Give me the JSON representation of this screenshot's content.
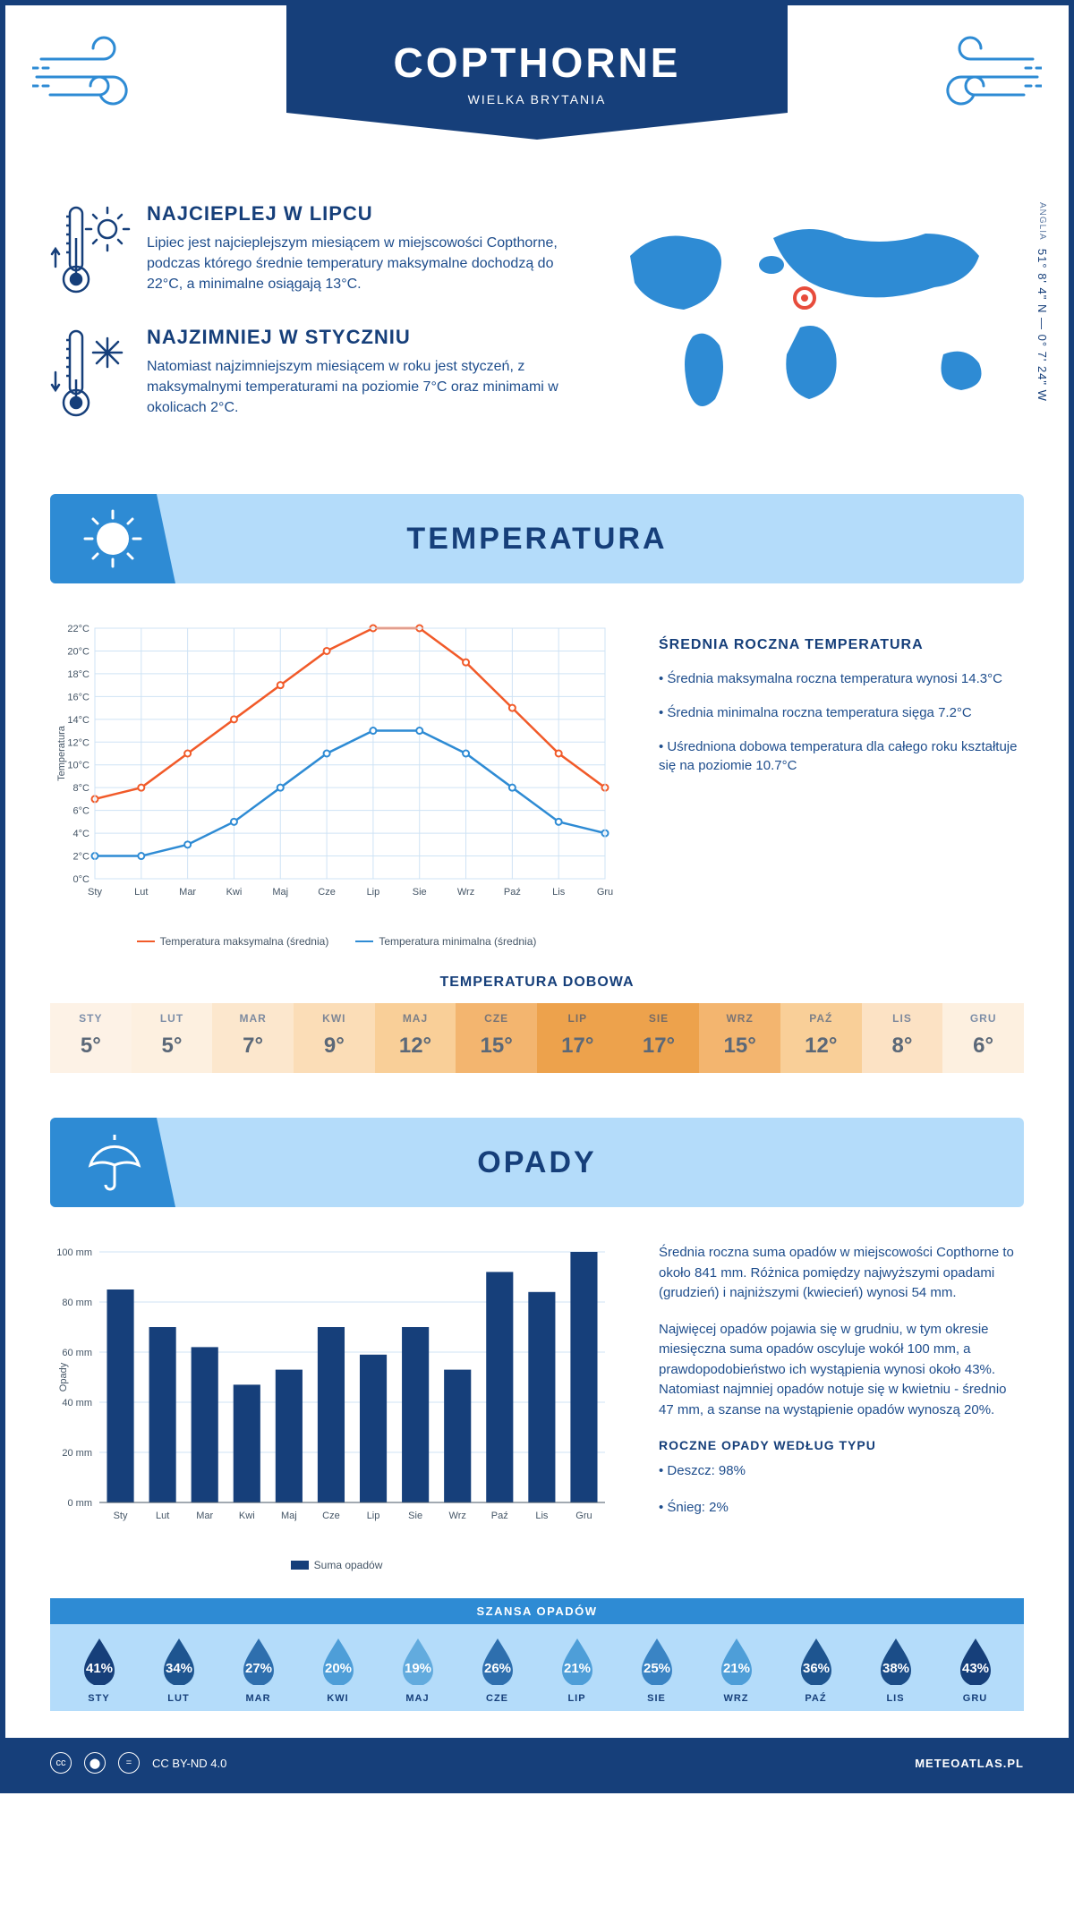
{
  "header": {
    "title": "COPTHORNE",
    "subtitle": "WIELKA BRYTANIA"
  },
  "coords": {
    "lat": "51° 8' 4\" N — 0° 7' 24\" W",
    "region": "ANGLIA"
  },
  "fact_hot": {
    "title": "NAJCIEPLEJ W LIPCU",
    "body": "Lipiec jest najcieplejszym miesiącem w miejscowości Copthorne, podczas którego średnie temperatury maksymalne dochodzą do 22°C, a minimalne osiągają 13°C."
  },
  "fact_cold": {
    "title": "NAJZIMNIEJ W STYCZNIU",
    "body": "Natomiast najzimniejszym miesiącem w roku jest styczeń, z maksymalnymi temperaturami na poziomie 7°C oraz minimami w okolicach 2°C."
  },
  "temp_section": {
    "title": "TEMPERATURA"
  },
  "temp_chart": {
    "type": "line",
    "months": [
      "Sty",
      "Lut",
      "Mar",
      "Kwi",
      "Maj",
      "Cze",
      "Lip",
      "Sie",
      "Wrz",
      "Paź",
      "Lis",
      "Gru"
    ],
    "max_series": {
      "values": [
        7,
        8,
        11,
        14,
        17,
        20,
        22,
        22,
        19,
        15,
        11,
        8
      ],
      "color": "#f15a29",
      "label": "Temperatura maksymalna (średnia)"
    },
    "min_series": {
      "values": [
        2,
        2,
        3,
        5,
        8,
        11,
        13,
        13,
        11,
        8,
        5,
        4
      ],
      "color": "#2e8bd4",
      "label": "Temperatura minimalna (średnia)"
    },
    "ylabel": "Temperatura",
    "ylim": [
      0,
      22
    ],
    "ytick_step": 2,
    "grid_color": "#cfe3f5",
    "bg": "#ffffff",
    "label_font": 11
  },
  "temp_stats": {
    "title": "ŚREDNIA ROCZNA TEMPERATURA",
    "b1": "• Średnia maksymalna roczna temperatura wynosi 14.3°C",
    "b2": "• Średnia minimalna roczna temperatura sięga 7.2°C",
    "b3": "• Uśredniona dobowa temperatura dla całego roku kształtuje się na poziomie 10.7°C"
  },
  "daily": {
    "title": "TEMPERATURA DOBOWA",
    "months": [
      "STY",
      "LUT",
      "MAR",
      "KWI",
      "MAJ",
      "CZE",
      "LIP",
      "SIE",
      "WRZ",
      "PAŹ",
      "LIS",
      "GRU"
    ],
    "values": [
      "5°",
      "5°",
      "7°",
      "9°",
      "12°",
      "15°",
      "17°",
      "17°",
      "15°",
      "12°",
      "8°",
      "6°"
    ],
    "colors": [
      "#fdf2e6",
      "#fdf0e0",
      "#fce7cd",
      "#fbddb7",
      "#f9cf98",
      "#f3b56f",
      "#eda24c",
      "#eda24c",
      "#f3b56f",
      "#f9cf98",
      "#fce2c4",
      "#fdf0e0"
    ]
  },
  "opady_section": {
    "title": "OPADY"
  },
  "opady_chart": {
    "type": "bar",
    "months": [
      "Sty",
      "Lut",
      "Mar",
      "Kwi",
      "Maj",
      "Cze",
      "Lip",
      "Sie",
      "Wrz",
      "Paź",
      "Lis",
      "Gru"
    ],
    "values": [
      85,
      70,
      62,
      47,
      53,
      70,
      59,
      70,
      53,
      92,
      84,
      100
    ],
    "ylabel": "Opady",
    "ylim": [
      0,
      100
    ],
    "ytick_step": 20,
    "bar_color": "#163f7a",
    "grid_color": "#cfe3f5",
    "legend_label": "Suma opadów",
    "label_font": 11
  },
  "opady_text": {
    "p1": "Średnia roczna suma opadów w miejscowości Copthorne to około 841 mm. Różnica pomiędzy najwyższymi opadami (grudzień) i najniższymi (kwiecień) wynosi 54 mm.",
    "p2": "Najwięcej opadów pojawia się w grudniu, w tym okresie miesięczna suma opadów oscyluje wokół 100 mm, a prawdopodobieństwo ich wystąpienia wynosi około 43%. Natomiast najmniej opadów notuje się w kwietniu - średnio 47 mm, a szanse na wystąpienie opadów wynoszą 20%.",
    "by_type_title": "ROCZNE OPADY WEDŁUG TYPU",
    "rain": "• Deszcz: 98%",
    "snow": "• Śnieg: 2%"
  },
  "chance": {
    "title": "SZANSA OPADÓW",
    "months": [
      "STY",
      "LUT",
      "MAR",
      "KWI",
      "MAJ",
      "CZE",
      "LIP",
      "SIE",
      "WRZ",
      "PAŹ",
      "LIS",
      "GRU"
    ],
    "pct": [
      "41%",
      "34%",
      "27%",
      "20%",
      "19%",
      "26%",
      "21%",
      "25%",
      "21%",
      "36%",
      "38%",
      "43%"
    ],
    "colors": [
      "#163f7a",
      "#1e5590",
      "#2e6fae",
      "#4e9ed8",
      "#62abde",
      "#2e6fae",
      "#4e9ed8",
      "#3a84c4",
      "#4e9ed8",
      "#1e5590",
      "#1b4d88",
      "#163f7a"
    ]
  },
  "footer": {
    "license": "CC BY-ND 4.0",
    "site": "METEOATLAS.PL"
  }
}
